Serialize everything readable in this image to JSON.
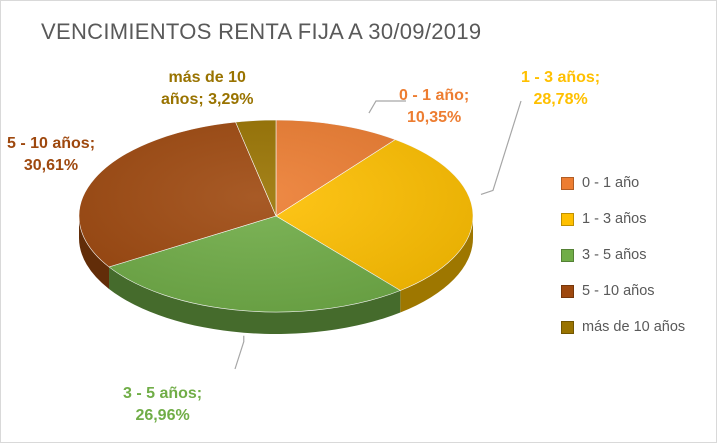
{
  "chart_data": {
    "type": "pie",
    "title": "VENCIMIENTOS RENTA FIJA A 30/09/2019",
    "categories": [
      "0 - 1 año",
      "1 - 3 años",
      "3 - 5 años",
      "5 - 10 años",
      "más de 10 años"
    ],
    "values": [
      10.35,
      28.78,
      26.96,
      30.61,
      3.29
    ],
    "data_labels": [
      [
        "0 - 1 año;",
        "10,35%"
      ],
      [
        "1 - 3 años;",
        "28,78%"
      ],
      [
        "3 - 5 años;",
        "26,96%"
      ],
      [
        "5 - 10 años;",
        "30,61%"
      ],
      [
        "más de 10",
        "años; 3,29%"
      ]
    ],
    "colors": [
      "#ED7D31",
      "#FFC000",
      "#70AD47",
      "#9E480E",
      "#997300"
    ],
    "label_colors": [
      "#ED7D31",
      "#FFC000",
      "#70AD47",
      "#9E480E",
      "#997300"
    ],
    "legend_position": "right",
    "style": "3d-pie"
  }
}
